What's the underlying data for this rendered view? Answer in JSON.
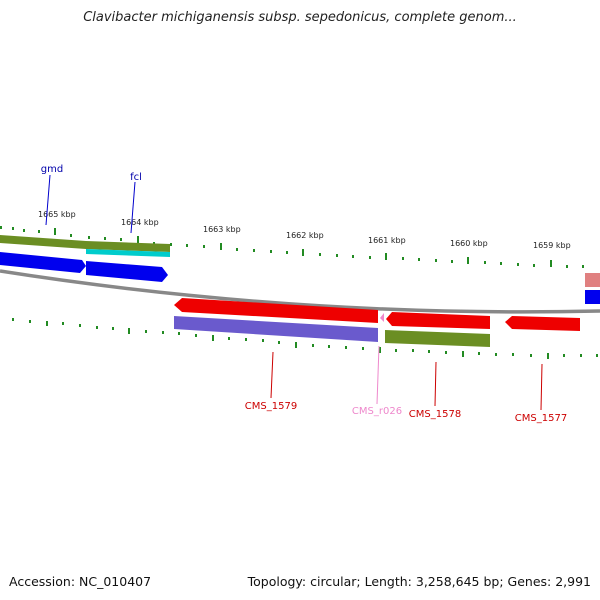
{
  "header": {
    "title": "Clavibacter michiganensis subsp. sepedonicus, complete genom..."
  },
  "footer": {
    "accession": "Accession: NC_010407",
    "summary": "Topology: circular; Length: 3,258,645 bp; Genes: 2,991"
  },
  "scale": {
    "labels": [
      "1665 kbp",
      "1664 kbp",
      "1663 kbp",
      "1662 kbp",
      "1661 kbp",
      "1660 kbp",
      "1659 kbp"
    ]
  },
  "genes": {
    "gmd": "gmd",
    "fcl": "fcl",
    "cms_1579": "CMS_1579",
    "cms_r026": "CMS_r026",
    "cms_1578": "CMS_1578",
    "cms_1577": "CMS_1577"
  },
  "colors": {
    "forward_cds": "#0000ee",
    "reverse_cds": "#ee0000",
    "gene_olive": "#6b8e23",
    "gene_cyan": "#00cccc",
    "gene_purple": "#6a5acd",
    "rna_pink": "#ee88cc",
    "backbone": "#888888",
    "tick": "#228b22"
  }
}
